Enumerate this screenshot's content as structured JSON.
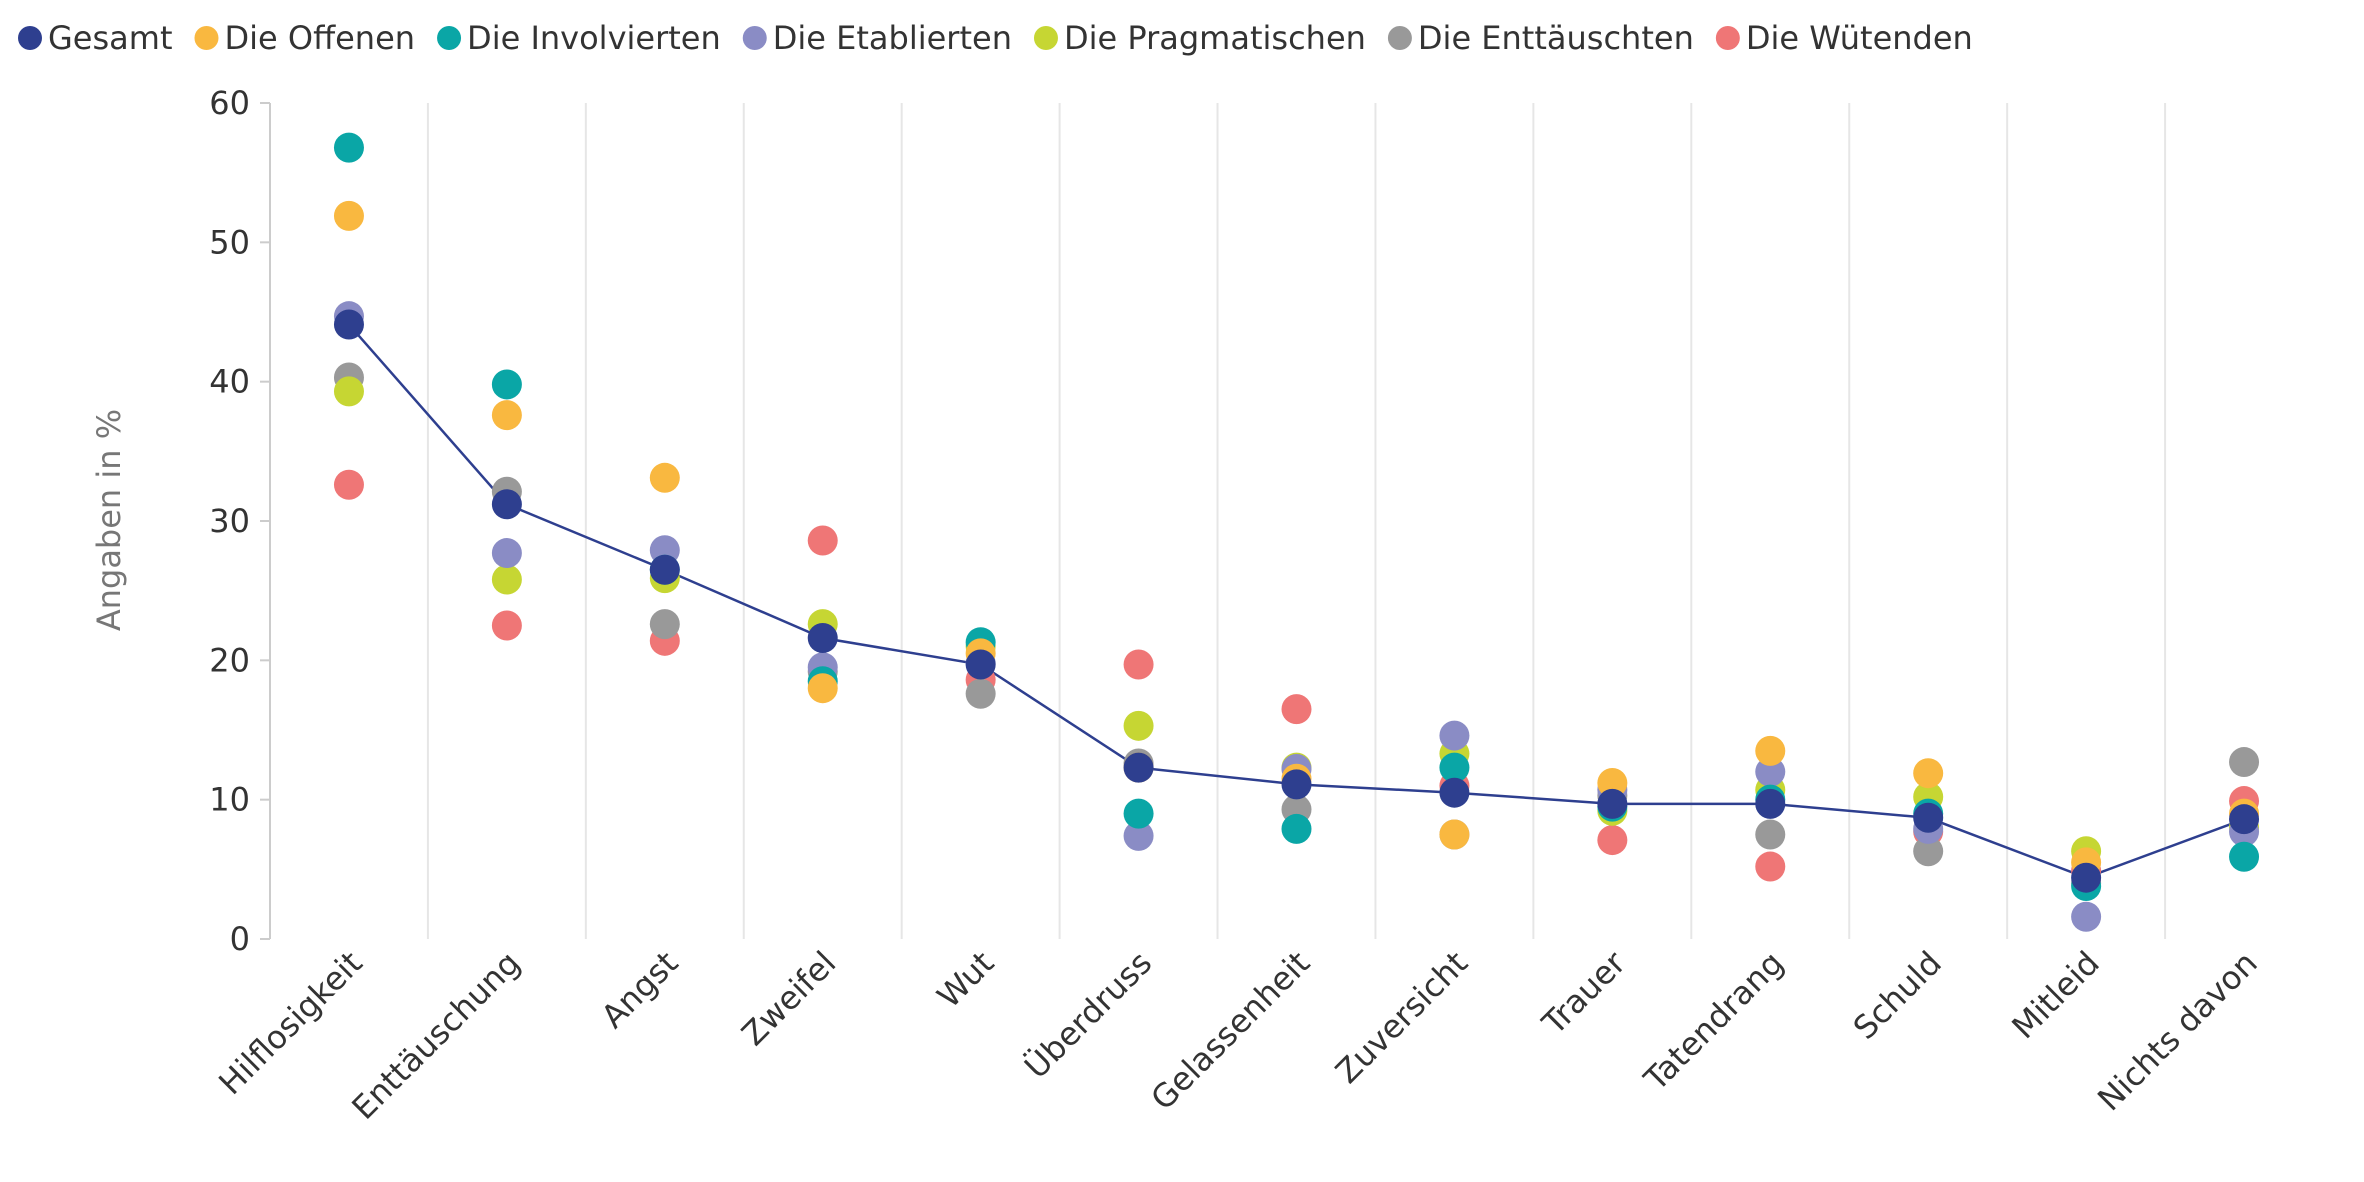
{
  "chart_data": {
    "type": "dot",
    "y_label": "Angaben in %",
    "categories": [
      "Hilflosigkeit",
      "Enttäuschung",
      "Angst",
      "Zweifel",
      "Wut",
      "Überdruss",
      "Gelassenheit",
      "Zuversicht",
      "Trauer",
      "Tatendrang",
      "Schuld",
      "Mitleid",
      "Nichts davon"
    ],
    "ylim": [
      0,
      60
    ],
    "yticks": [
      0,
      10,
      20,
      30,
      40,
      50,
      60
    ],
    "series": [
      {
        "name": "Gesamt",
        "color": "#2e3f8f",
        "line": true,
        "values": [
          44.1,
          31.2,
          26.5,
          21.6,
          19.7,
          12.3,
          11.1,
          10.5,
          9.7,
          9.7,
          8.7,
          4.4,
          8.6
        ]
      },
      {
        "name": "Die Offenen",
        "color": "#f9b840",
        "values": [
          51.9,
          37.6,
          33.1,
          18.0,
          20.5,
          12.3,
          11.5,
          7.5,
          11.2,
          13.5,
          11.9,
          5.5,
          9.0
        ]
      },
      {
        "name": "Die Involvierten",
        "color": "#0aa6a6",
        "values": [
          56.8,
          39.8,
          26.5,
          18.5,
          21.3,
          9.0,
          7.9,
          12.3,
          9.5,
          10.0,
          9.0,
          3.8,
          5.9
        ]
      },
      {
        "name": "Die Etablierten",
        "color": "#8a8cc5",
        "values": [
          44.7,
          27.7,
          27.9,
          19.5,
          19.8,
          7.4,
          12.2,
          14.6,
          10.7,
          12.0,
          7.9,
          1.6,
          7.7
        ]
      },
      {
        "name": "Die Pragmatischen",
        "color": "#c6d633",
        "values": [
          39.3,
          25.8,
          25.9,
          22.6,
          21.0,
          15.3,
          12.3,
          13.3,
          9.2,
          10.7,
          10.2,
          6.3,
          8.0
        ]
      },
      {
        "name": "Die Enttäuschten",
        "color": "#999999",
        "values": [
          40.3,
          32.1,
          22.6,
          19.2,
          17.6,
          12.6,
          9.3,
          7.5,
          10.3,
          7.5,
          6.3,
          4.0,
          12.7
        ]
      },
      {
        "name": "Die Wütenden",
        "color": "#ef7676",
        "values": [
          32.6,
          22.5,
          21.4,
          28.6,
          18.6,
          19.7,
          16.5,
          11.0,
          7.1,
          5.2,
          7.7,
          4.9,
          9.9
        ]
      }
    ]
  }
}
